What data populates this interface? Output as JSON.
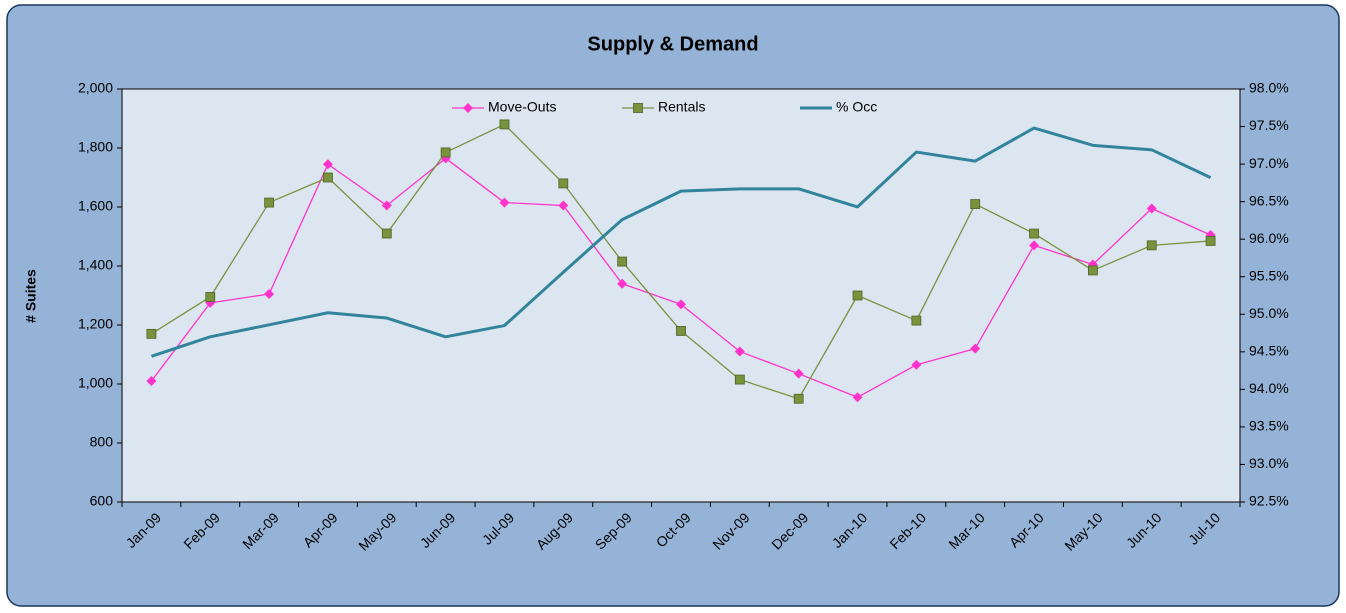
{
  "chart_data": {
    "type": "line",
    "title": "Supply & Demand",
    "y_label": "# Suites",
    "categories": [
      "Jan-09",
      "Feb-09",
      "Mar-09",
      "Apr-09",
      "May-09",
      "Jun-09",
      "Jul-09",
      "Aug-09",
      "Sep-09",
      "Oct-09",
      "Nov-09",
      "Dec-09",
      "Jan-10",
      "Feb-10",
      "Mar-10",
      "Apr-10",
      "May-10",
      "Jun-10",
      "Jul-10"
    ],
    "series": [
      {
        "name": "Move-Outs",
        "color": "#ff33cc",
        "marker": "diamond",
        "values": [
          1010,
          1275,
          1305,
          1745,
          1605,
          1765,
          1615,
          1605,
          1340,
          1270,
          1110,
          1035,
          955,
          1065,
          1120,
          1470,
          1405,
          1595,
          1505
        ]
      },
      {
        "name": "Rentals",
        "color": "#77933c",
        "marker": "square",
        "values": [
          1170,
          1295,
          1615,
          1700,
          1510,
          1785,
          1880,
          1680,
          1415,
          1180,
          1015,
          950,
          1300,
          1215,
          1610,
          1510,
          1385,
          1470,
          1485
        ]
      },
      {
        "name": "% Occ",
        "color": "#31849b",
        "axis": "y2",
        "values": [
          94.44,
          94.7,
          94.86,
          95.02,
          94.95,
          94.7,
          94.85,
          95.56,
          96.26,
          96.64,
          96.67,
          96.67,
          96.43,
          97.16,
          97.04,
          97.48,
          97.25,
          97.19,
          96.82
        ]
      }
    ],
    "ylim": [
      600,
      2000
    ],
    "yticks": [
      600,
      800,
      {
        "value": 1000,
        "label": "1,000"
      },
      {
        "value": 1200,
        "label": "1,200"
      },
      {
        "value": 1400,
        "label": "1,400"
      },
      {
        "value": 1600,
        "label": "1,600"
      },
      {
        "value": 1800,
        "label": "1,800"
      },
      {
        "value": 2000,
        "label": "2,000"
      }
    ],
    "y2lim": [
      92.5,
      98
    ],
    "y2ticks": [
      {
        "value": 92.5,
        "label": "92.5%"
      },
      {
        "value": 93,
        "label": "93.0%"
      },
      {
        "value": 93.5,
        "label": "93.5%"
      },
      {
        "value": 94,
        "label": "94.0%"
      },
      {
        "value": 94.5,
        "label": "94.5%"
      },
      {
        "value": 95,
        "label": "95.0%"
      },
      {
        "value": 95.5,
        "label": "95.5%"
      },
      {
        "value": 96,
        "label": "96.0%"
      },
      {
        "value": 96.5,
        "label": "96.5%"
      },
      {
        "value": 97,
        "label": "97.0%"
      },
      {
        "value": 97.5,
        "label": "97.5%"
      },
      {
        "value": 98,
        "label": "98.0%"
      }
    ],
    "legend": "top"
  }
}
